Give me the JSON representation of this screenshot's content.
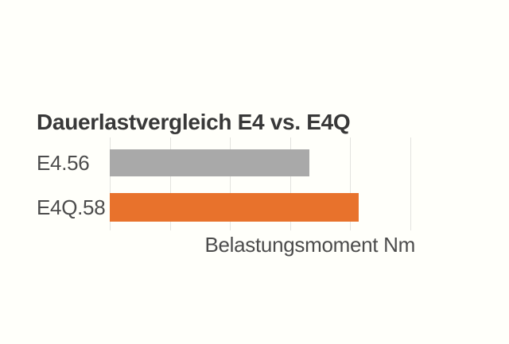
{
  "page": {
    "background_color": "#FFFFFA"
  },
  "chart_data": {
    "type": "bar",
    "orientation": "horizontal",
    "title": "Dauerlastvergleich E4 vs. E4Q",
    "xlabel": "Belastungsmoment Nm",
    "ylabel": "",
    "categories": [
      "E4.56",
      "E4Q.58"
    ],
    "values": [
      3.32,
      4.14
    ],
    "value_note": "no numeric tick labels shown; values estimated in relative gridline units",
    "axis": {
      "min": 0,
      "max": 5.6,
      "gridline_step": 1,
      "tick_labels_visible": false
    },
    "series_colors": [
      "#A9A9A9",
      "#E8722C"
    ],
    "grid": true,
    "gridline_color": "#E3E3DF",
    "legend": "none",
    "colors": {
      "title_text": "#383838",
      "label_text": "#4C4C4C",
      "bar_gray": "#A9A9A9",
      "bar_orange": "#E8722C"
    }
  }
}
